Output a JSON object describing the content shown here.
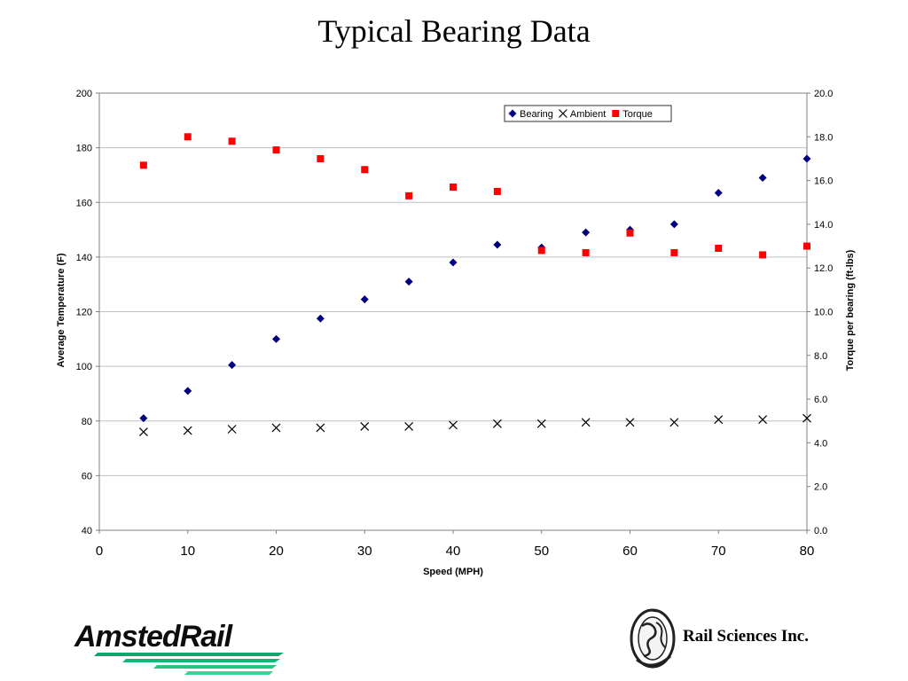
{
  "slide": {
    "title": "Typical Bearing Data"
  },
  "logos": {
    "left_brand": "AmstedRail",
    "right_company": "Rail Sciences Inc."
  },
  "colors": {
    "bearing": "#000080",
    "ambient": "#000000",
    "torque": "#ff0000",
    "gridline": "#c0c0c0"
  },
  "chart_data": {
    "type": "scatter",
    "xlabel": "Speed (MPH)",
    "ylabel": "Average Temperature (F)",
    "y2label": "Torque per bearing (ft-lbs)",
    "xlim": [
      0,
      80
    ],
    "ylim": [
      40,
      200
    ],
    "y2lim": [
      0,
      20
    ],
    "xticks": [
      "0",
      "10",
      "20",
      "30",
      "40",
      "50",
      "60",
      "70",
      "80"
    ],
    "yticks": [
      "40",
      "60",
      "80",
      "100",
      "120",
      "140",
      "160",
      "180",
      "200"
    ],
    "y2ticks": [
      "0.0",
      "2.0",
      "4.0",
      "6.0",
      "8.0",
      "10.0",
      "12.0",
      "14.0",
      "16.0",
      "18.0",
      "20.0"
    ],
    "grid": "horizontal",
    "legend_position": "top-right",
    "series": [
      {
        "name": "Bearing",
        "axis": "left",
        "marker": "diamond",
        "x": [
          5,
          10,
          15,
          20,
          25,
          30,
          35,
          40,
          45,
          50,
          55,
          60,
          65,
          70,
          75,
          80
        ],
        "y": [
          81,
          91,
          100.5,
          110,
          117.5,
          124.5,
          131,
          138,
          144.5,
          143.5,
          149,
          150,
          152,
          163.5,
          169,
          176
        ]
      },
      {
        "name": "Ambient",
        "axis": "left",
        "marker": "x",
        "x": [
          5,
          10,
          15,
          20,
          25,
          30,
          35,
          40,
          45,
          50,
          55,
          60,
          65,
          70,
          75,
          80
        ],
        "y": [
          76,
          76.5,
          77,
          77.5,
          77.5,
          78,
          78,
          78.5,
          79,
          79,
          79.5,
          79.5,
          79.5,
          80.5,
          80.5,
          81
        ]
      },
      {
        "name": "Torque",
        "axis": "right",
        "marker": "square",
        "x": [
          5,
          10,
          15,
          20,
          25,
          30,
          35,
          40,
          45,
          50,
          55,
          60,
          65,
          70,
          75,
          80
        ],
        "y": [
          16.7,
          18.0,
          17.8,
          17.4,
          17.0,
          16.5,
          15.3,
          15.7,
          15.5,
          12.8,
          12.7,
          13.6,
          12.7,
          12.9,
          12.6,
          13.0
        ]
      }
    ]
  }
}
